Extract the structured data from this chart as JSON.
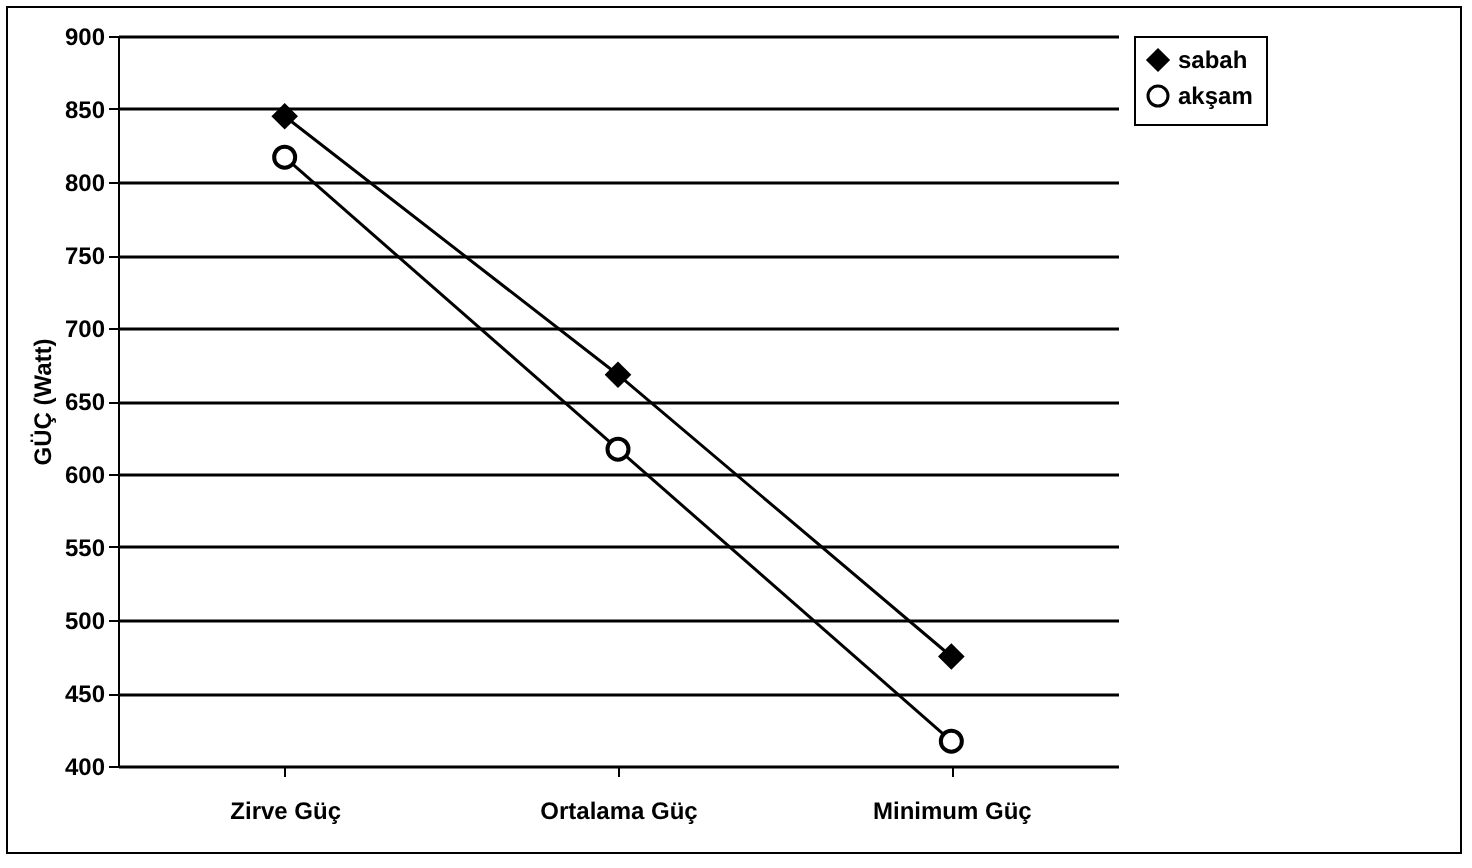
{
  "chart_data": {
    "type": "line",
    "ylabel": "GÜÇ (Watt)",
    "categories": [
      "Zirve Güç",
      "Ortalama Güç",
      "Minimum Güç"
    ],
    "series": [
      {
        "name": "sabah",
        "color": "#000000",
        "marker": "diamond",
        "values": [
          845,
          668,
          475
        ]
      },
      {
        "name": "akşam",
        "color": "#000000",
        "marker": "circle",
        "values": [
          817,
          617,
          417
        ]
      }
    ],
    "ylim": [
      400,
      900
    ],
    "yticks": [
      400,
      450,
      500,
      550,
      600,
      650,
      700,
      750,
      800,
      850,
      900
    ],
    "grid": "y",
    "legend": "top right",
    "line_style": "solid"
  }
}
